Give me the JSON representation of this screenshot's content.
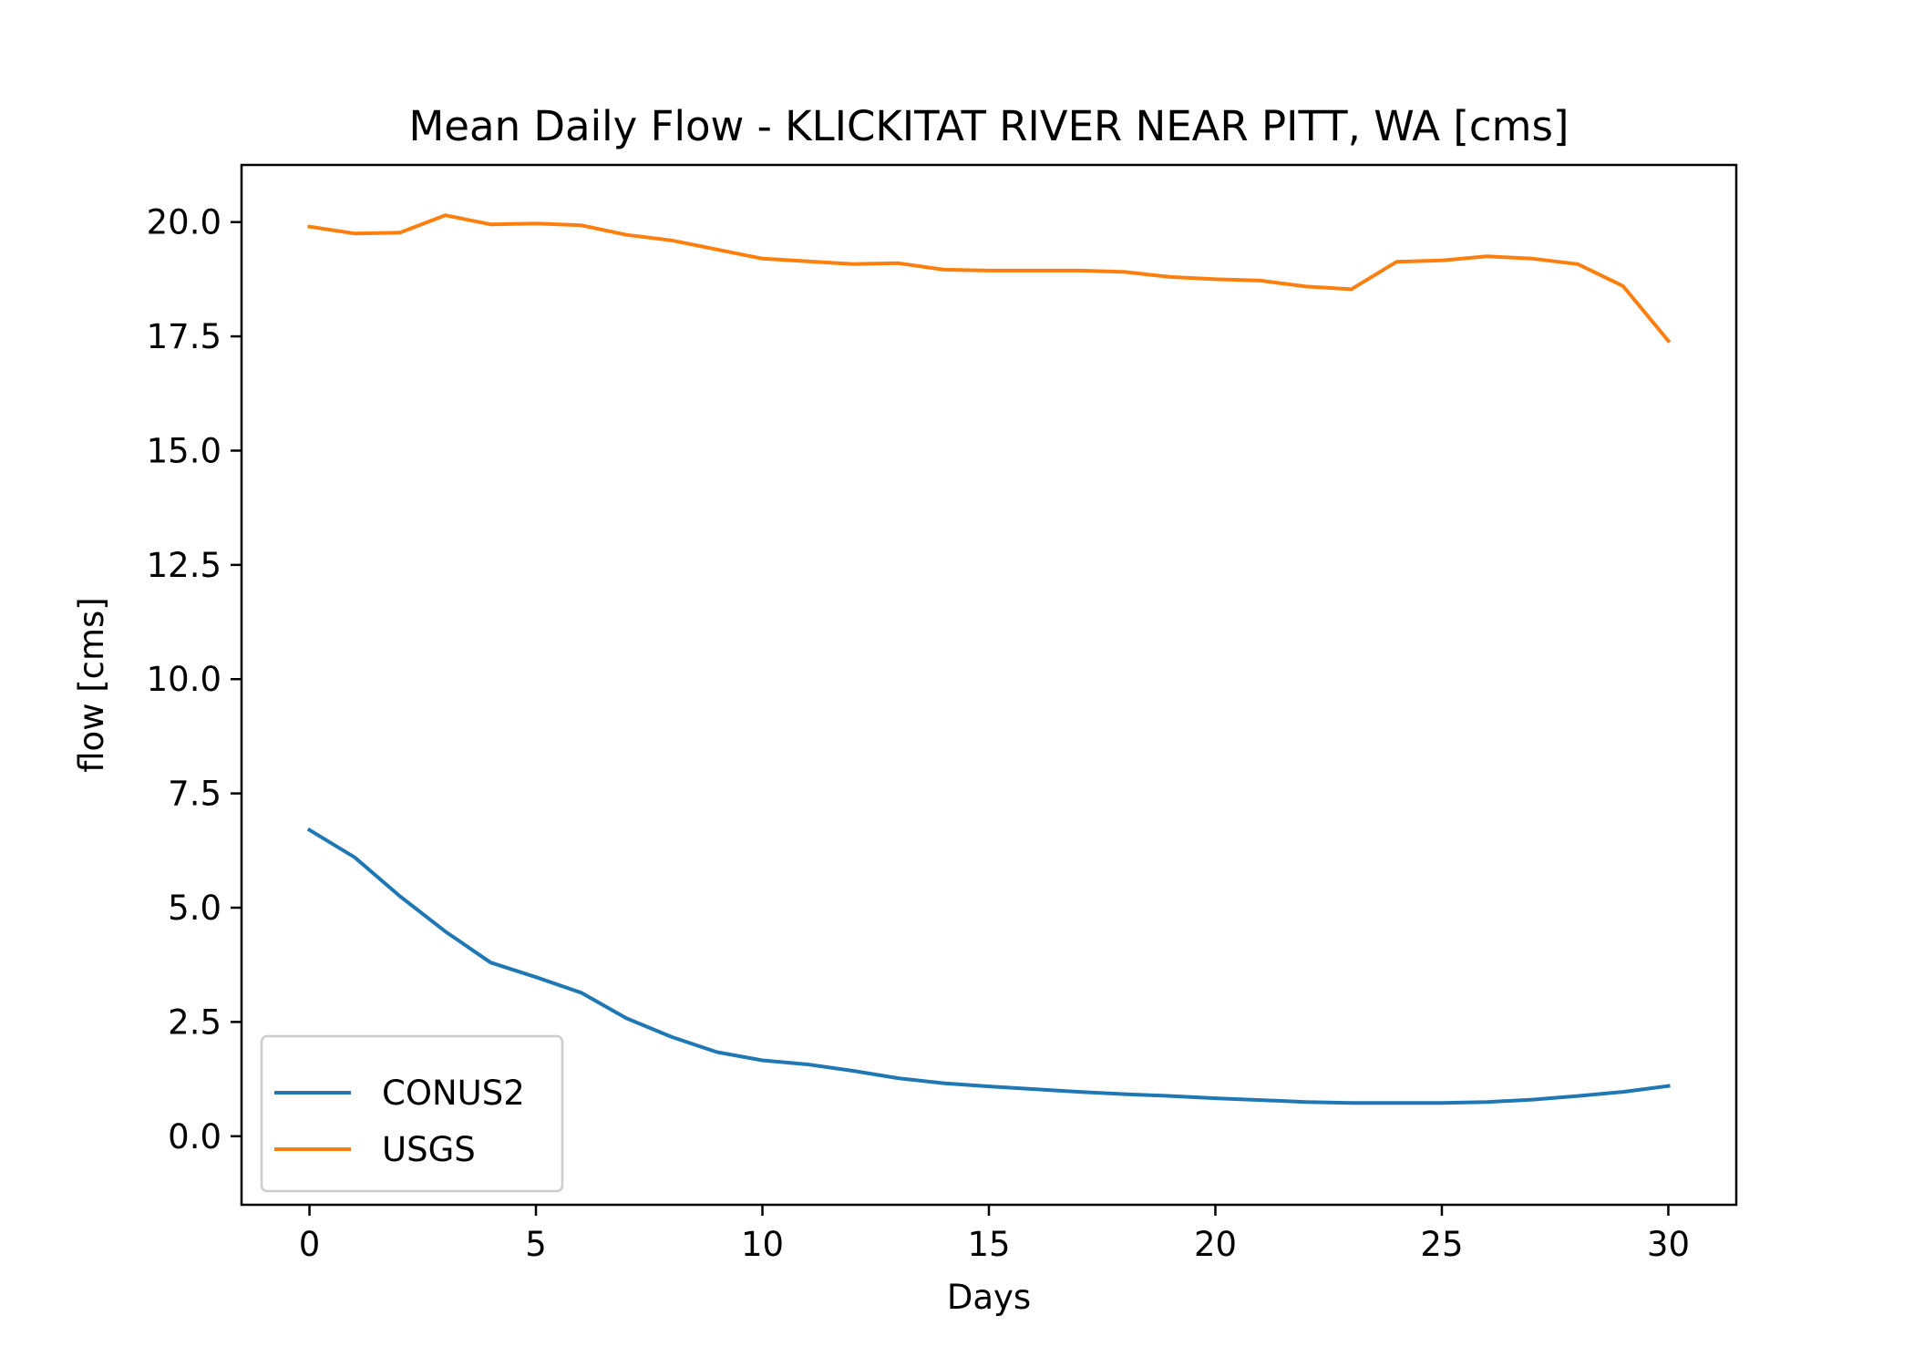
{
  "chart_data": {
    "type": "line",
    "title": "Mean Daily Flow - KLICKITAT RIVER NEAR PITT, WA [cms]",
    "xlabel": "Days",
    "ylabel": "flow [cms]",
    "xlim": [
      -1.5,
      31.5
    ],
    "ylim": [
      -1.5,
      21.25
    ],
    "xticks": [
      0,
      5,
      10,
      15,
      20,
      25,
      30
    ],
    "xtick_labels": [
      "0",
      "5",
      "10",
      "15",
      "20",
      "25",
      "30"
    ],
    "yticks": [
      0,
      2.5,
      5,
      7.5,
      10,
      12.5,
      15,
      17.5,
      20
    ],
    "ytick_labels": [
      "0.0",
      "2.5",
      "5.0",
      "7.5",
      "10.0",
      "12.5",
      "15.0",
      "17.5",
      "20.0"
    ],
    "grid": false,
    "legend_position": "lower-left",
    "x": [
      0,
      1,
      2,
      3,
      4,
      5,
      6,
      7,
      8,
      9,
      10,
      11,
      12,
      13,
      14,
      15,
      16,
      17,
      18,
      19,
      20,
      21,
      22,
      23,
      24,
      25,
      26,
      27,
      28,
      29,
      30
    ],
    "series": [
      {
        "name": "CONUS2",
        "color": "#1f77b4",
        "values": [
          6.7,
          6.1,
          5.25,
          4.48,
          3.8,
          3.48,
          3.14,
          2.58,
          2.17,
          1.84,
          1.66,
          1.57,
          1.43,
          1.27,
          1.16,
          1.09,
          1.03,
          0.97,
          0.92,
          0.88,
          0.83,
          0.79,
          0.75,
          0.73,
          0.73,
          0.73,
          0.75,
          0.8,
          0.88,
          0.97,
          1.1
        ]
      },
      {
        "name": "USGS",
        "color": "#ff7f0e",
        "values": [
          19.9,
          19.75,
          19.77,
          20.15,
          19.95,
          19.97,
          19.93,
          19.72,
          19.6,
          19.4,
          19.2,
          19.14,
          19.08,
          19.1,
          18.96,
          18.94,
          18.94,
          18.94,
          18.91,
          18.8,
          18.75,
          18.72,
          18.59,
          18.53,
          19.13,
          19.16,
          19.25,
          19.2,
          19.08,
          18.6,
          17.4
        ]
      }
    ]
  }
}
